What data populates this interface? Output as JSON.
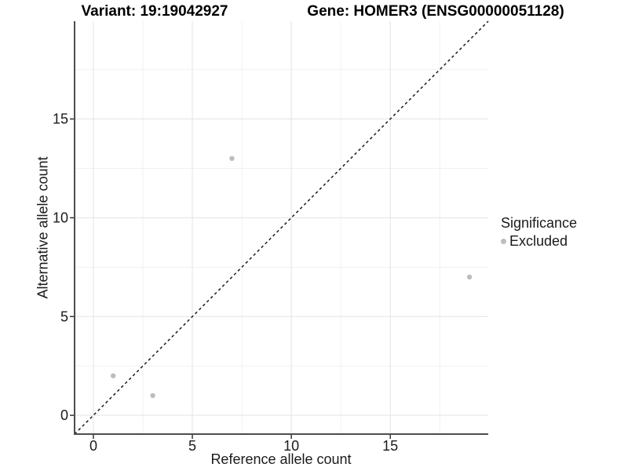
{
  "chart_data": {
    "type": "scatter",
    "title_variant": "Variant: 19:19042927",
    "title_gene": "Gene: HOMER3 (ENSG00000051128)",
    "xlabel": "Reference allele count",
    "ylabel": "Alternative allele count",
    "xlim": [
      -0.95,
      19.95
    ],
    "ylim": [
      -0.95,
      19.95
    ],
    "x_ticks": [
      0,
      5,
      10,
      15
    ],
    "y_ticks": [
      0,
      5,
      10,
      15
    ],
    "x_minor_ticks": [
      2.5,
      7.5,
      12.5,
      17.5
    ],
    "y_minor_ticks": [
      2.5,
      7.5,
      12.5,
      17.5
    ],
    "grid": "major and minor gridlines on",
    "identity_line": {
      "style": "dashed",
      "equation": "y = x"
    },
    "series": [
      {
        "name": "Excluded",
        "color": "#bdbdbd",
        "points": [
          [
            1,
            2
          ],
          [
            3,
            1
          ],
          [
            7,
            13
          ],
          [
            19,
            7
          ]
        ]
      }
    ],
    "legend": {
      "title": "Significance",
      "position": "right",
      "items": [
        {
          "label": "Excluded",
          "color": "#bdbdbd"
        }
      ]
    }
  },
  "colors": {
    "background": "#ffffff",
    "grid_major": "#e3e3e3",
    "grid_minor": "#f1f1f1",
    "axis_line": "#4d4d4d",
    "tick_mark": "#333333",
    "dashed_line": "#1a1a1a",
    "point": "#bdbdbd",
    "text": "#1a1a1a"
  }
}
